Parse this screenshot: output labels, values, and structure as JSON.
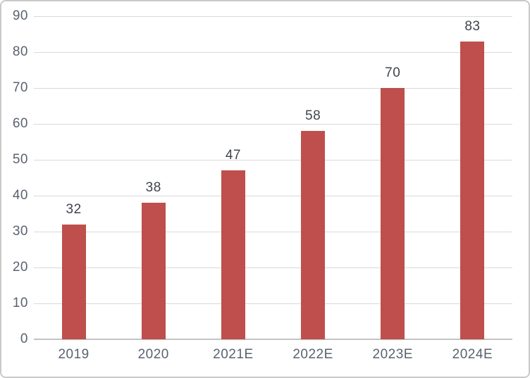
{
  "chart_data": {
    "type": "bar",
    "title": "",
    "xlabel": "",
    "ylabel": "",
    "categories": [
      "2019",
      "2020",
      "2021E",
      "2022E",
      "2023E",
      "2024E"
    ],
    "values": [
      32,
      38,
      47,
      58,
      70,
      83
    ],
    "data_labels": [
      "32",
      "38",
      "47",
      "58",
      "70",
      "83"
    ],
    "ylim": [
      0,
      90
    ],
    "y_tick_step": 10,
    "y_tick_labels": [
      "0",
      "10",
      "20",
      "30",
      "40",
      "50",
      "60",
      "70",
      "80",
      "90"
    ],
    "grid": true,
    "legend_position": "none",
    "bar_color": "#be4f4d",
    "gridline_color": "#d9d9d9",
    "axis_line_color": "#c3c3c3",
    "axis_label_color": "#5a6270",
    "data_label_color": "#3f444c",
    "frame_border_color": "#c9c9c9"
  }
}
